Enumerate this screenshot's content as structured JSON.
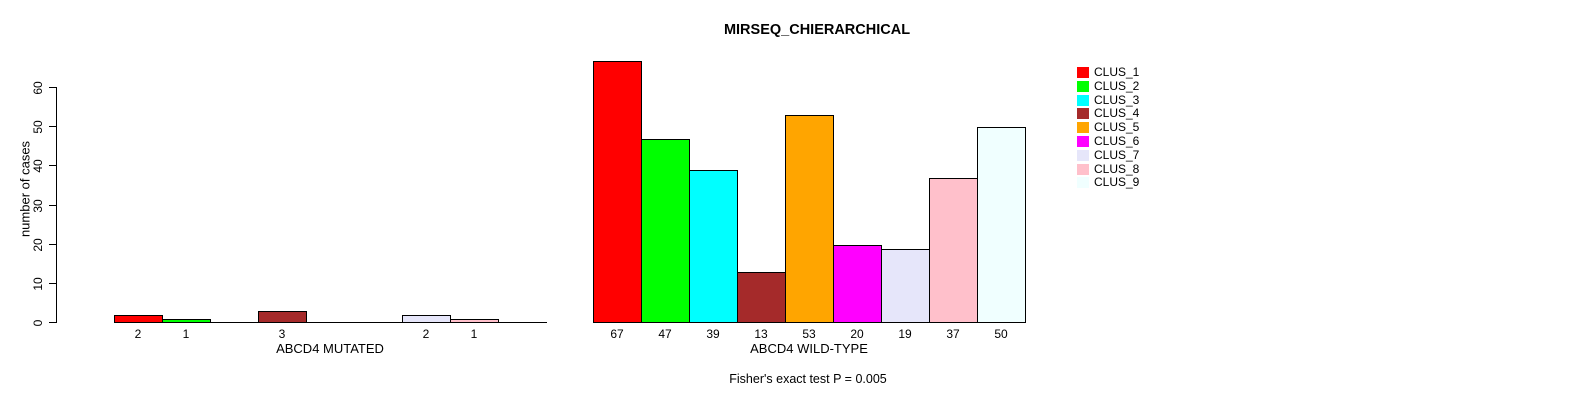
{
  "chart_data": {
    "type": "bar",
    "title": "MIRSEQ_CHIERARCHICAL",
    "ylabel": "number of cases",
    "ylim": [
      0,
      60
    ],
    "yticks": [
      0,
      10,
      20,
      30,
      40,
      50,
      60
    ],
    "grid": false,
    "legend_position": "right",
    "bar_border_color": "#000000",
    "clusters": [
      "CLUS_1",
      "CLUS_2",
      "CLUS_3",
      "CLUS_4",
      "CLUS_5",
      "CLUS_6",
      "CLUS_7",
      "CLUS_8",
      "CLUS_9"
    ],
    "colors": [
      "#ff0000",
      "#00ff00",
      "#00ffff",
      "#a52a2a",
      "#ffa500",
      "#ff00ff",
      "#e6e6fa",
      "#ffc0cb",
      "#f0ffff"
    ],
    "groups": [
      {
        "label": "ABCD4 MUTATED",
        "values": [
          2,
          1,
          0,
          3,
          0,
          0,
          2,
          1,
          0
        ]
      },
      {
        "label": "ABCD4 WILD-TYPE",
        "values": [
          67,
          47,
          39,
          13,
          53,
          20,
          19,
          37,
          50
        ]
      }
    ],
    "annotation": "Fisher's exact test P = 0.005"
  }
}
